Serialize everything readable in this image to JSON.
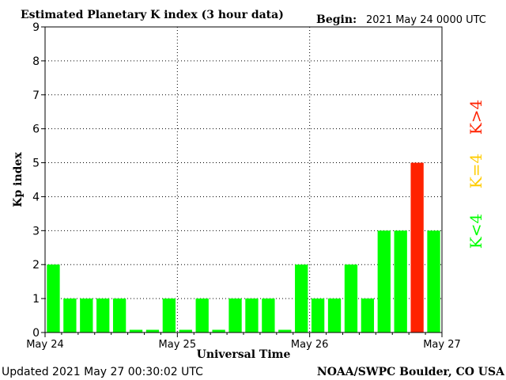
{
  "header": {
    "title": "Estimated Planetary K index (3 hour data)",
    "begin_label": "Begin:",
    "begin_value": "2021 May 24 0000 UTC"
  },
  "footer": {
    "updated": "Updated 2021 May 27 00:30:02 UTC",
    "source": "NOAA/SWPC Boulder, CO USA"
  },
  "legend": {
    "low": "K<4",
    "equal": "K=4",
    "high": "K>4"
  },
  "colors": {
    "low": "#00ff00",
    "equal": "#ffcc00",
    "high": "#ff2200",
    "grid": "#000000"
  },
  "chart_data": {
    "type": "bar",
    "title": "Estimated Planetary K index (3 hour data)",
    "xlabel": "Universal Time",
    "ylabel": "Kp index",
    "ylim": [
      0,
      9
    ],
    "yticks": [
      0,
      1,
      2,
      3,
      4,
      5,
      6,
      7,
      8,
      9
    ],
    "xtick_labels": [
      "May 24",
      "May 25",
      "May 26",
      "May 27"
    ],
    "bar_interval_hours": 3,
    "values": [
      2,
      1,
      1,
      1,
      1,
      0,
      0,
      1,
      0,
      1,
      0,
      1,
      1,
      1,
      0,
      2,
      1,
      1,
      2,
      1,
      3,
      3,
      5,
      3
    ],
    "grid": true
  }
}
